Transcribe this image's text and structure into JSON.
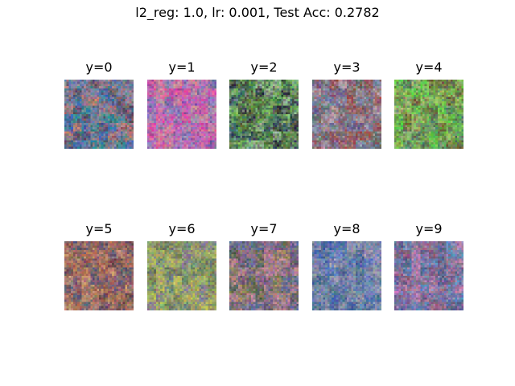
{
  "figure": {
    "title": "l2_reg: 1.0, lr: 0.001, Test Acc: 0.2782"
  },
  "panels": [
    {
      "label": "y=0",
      "palette": [
        "#3f6fb8",
        "#7a7f9a",
        "#5a4a5e",
        "#2f8f8f",
        "#9a8aa0",
        "#c87a6a"
      ]
    },
    {
      "label": "y=1",
      "palette": [
        "#c060b8",
        "#6a5a9a",
        "#d88a98",
        "#8f7fbf",
        "#e048a0",
        "#a09ab0"
      ]
    },
    {
      "label": "y=2",
      "palette": [
        "#4f8f4a",
        "#7fbf6a",
        "#3f5f6a",
        "#9fb89f",
        "#5f7f3f",
        "#2f2f3a"
      ]
    },
    {
      "label": "y=3",
      "palette": [
        "#8a6a7a",
        "#7f8fa8",
        "#a05048",
        "#5f6f6a",
        "#b8a0a8",
        "#6a5a8a"
      ]
    },
    {
      "label": "y=4",
      "palette": [
        "#6a9a4a",
        "#8fbf5a",
        "#4f7f6a",
        "#aab878",
        "#6a5a3a",
        "#5fcf4a"
      ]
    },
    {
      "label": "y=5",
      "palette": [
        "#a06a5a",
        "#6a4a4a",
        "#c89a7a",
        "#5a5f7a",
        "#8f5f6f",
        "#b87a5a"
      ]
    },
    {
      "label": "y=6",
      "palette": [
        "#9fa060",
        "#6f8f7f",
        "#a0b868",
        "#8a7a9a",
        "#bfbf5a",
        "#6a7a5a"
      ]
    },
    {
      "label": "y=7",
      "palette": [
        "#8a6a8a",
        "#5f6f9f",
        "#c88a98",
        "#9a8a5a",
        "#6a5a7a",
        "#4f5f4a"
      ]
    },
    {
      "label": "y=8",
      "palette": [
        "#5f7fbf",
        "#8a8fa8",
        "#3f5f9f",
        "#7a8aa0",
        "#a8a0b8",
        "#4f6f8f"
      ]
    },
    {
      "label": "y=9",
      "palette": [
        "#6a6a9a",
        "#c888b8",
        "#4f5f8a",
        "#a07a9a",
        "#5f8fbf",
        "#8a5a7a"
      ]
    }
  ]
}
